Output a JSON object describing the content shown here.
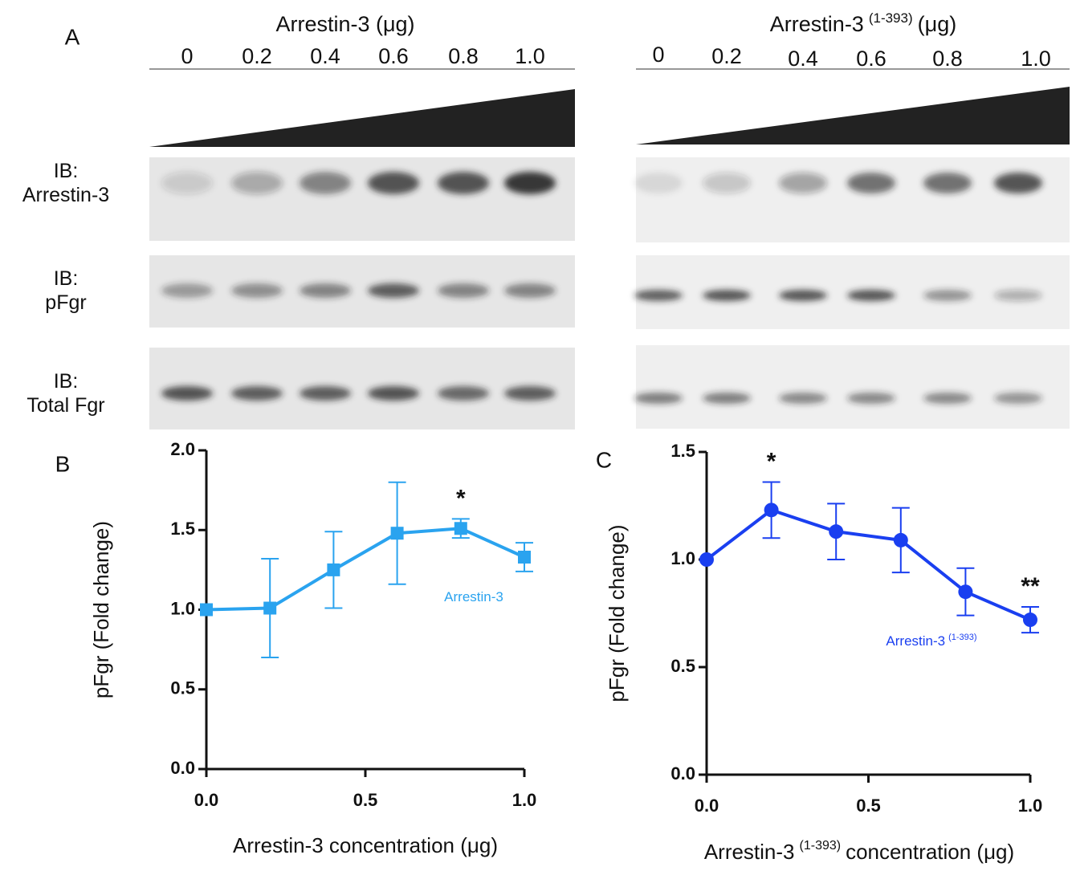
{
  "panel_a": {
    "label": "A",
    "left_title": "Arrestin-3 (μg)",
    "right_title": "Arrestin-3",
    "right_title_sup": "(1-393)",
    "right_title_rest": "(μg)",
    "lanes": [
      "0",
      "0.2",
      "0.4",
      "0.6",
      "0.8",
      "1.0"
    ],
    "row_labels": [
      [
        "IB:",
        "Arrestin-3"
      ],
      [
        "IB:",
        "pFgr"
      ],
      [
        "IB:",
        "Total Fgr"
      ]
    ]
  },
  "chart_data": [
    {
      "type": "line",
      "panel": "B",
      "ylabel": "pFgr (Fold change)",
      "xlabel": "Arrestin-3 concentration (μg)",
      "x": [
        0,
        0.2,
        0.4,
        0.6,
        0.8,
        1.0
      ],
      "series": [
        {
          "name": "Arrestin-3",
          "color": "#2aa3ef",
          "marker": "square",
          "values": [
            1.0,
            1.01,
            1.25,
            1.48,
            1.51,
            1.33
          ],
          "errors": [
            0,
            0.31,
            0.24,
            0.32,
            0.06,
            0.09
          ]
        }
      ],
      "annotations": [
        {
          "text": "*",
          "x": 0.8
        }
      ],
      "xlim": [
        0,
        1
      ],
      "xticks": [
        {
          "value": 0,
          "label": "0.0"
        },
        0.5,
        {
          "value": 1,
          "label": "1.0"
        }
      ],
      "ylim": [
        0,
        2
      ],
      "yticks": [
        {
          "value": 0,
          "label": "0.0"
        },
        0.5,
        {
          "value": 1,
          "label": "1.0"
        },
        1.5,
        {
          "value": 2,
          "label": "2.0"
        }
      ]
    },
    {
      "type": "line",
      "panel": "C",
      "ylabel": "pFgr (Fold change)",
      "xlabel": "Arrestin-3",
      "xlabel_sup": "(1-393)",
      "xlabel_rest": "concentration (μg)",
      "x": [
        0,
        0.2,
        0.4,
        0.6,
        0.8,
        1.0
      ],
      "series": [
        {
          "name": "Arrestin-3",
          "name_sup": "(1-393)",
          "color": "#1a3ff0",
          "marker": "circle",
          "values": [
            1.0,
            1.23,
            1.13,
            1.09,
            0.85,
            0.72
          ],
          "errors": [
            0,
            0.13,
            0.13,
            0.15,
            0.11,
            0.06
          ]
        }
      ],
      "annotations": [
        {
          "text": "*",
          "x": 0.2
        },
        {
          "text": "**",
          "x": 1.0
        }
      ],
      "xlim": [
        0,
        1
      ],
      "xticks": [
        {
          "value": 0,
          "label": "0.0"
        },
        0.5,
        {
          "value": 1,
          "label": "1.0"
        }
      ],
      "ylim": [
        0,
        1.5
      ],
      "yticks": [
        {
          "value": 0,
          "label": "0.0"
        },
        0.5,
        {
          "value": 1,
          "label": "1.0"
        },
        1.5
      ]
    }
  ]
}
